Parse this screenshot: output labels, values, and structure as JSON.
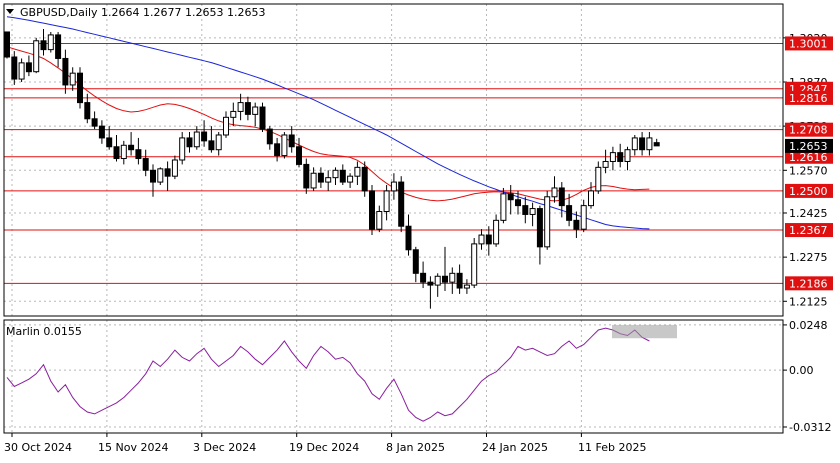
{
  "header": {
    "symbol": "GBPUSD,Daily",
    "ohlc": "1.2664 1.2677 1.2653 1.2653"
  },
  "indicator": {
    "label": "Marlin 0.0155"
  },
  "chart_data": [
    {
      "type": "candlestick",
      "title": "GBPUSD,Daily",
      "ylim": [
        1.2075,
        1.3135
      ],
      "y_ticks": [
        "1.3020",
        "1.2870",
        "1.2720",
        "1.2570",
        "1.2425",
        "1.2275",
        "1.2125"
      ],
      "x_ticks": [
        "30 Oct 2024",
        "15 Nov 2024",
        "3 Dec 2024",
        "19 Dec 2024",
        "8 Jan 2025",
        "24 Jan 2025",
        "11 Feb 2025"
      ],
      "current_price": "1.2653",
      "levels": [
        {
          "value": 1.3001,
          "label": "1.3001"
        },
        {
          "value": 1.2847,
          "label": "1.2847"
        },
        {
          "value": 1.2816,
          "label": "1.2816"
        },
        {
          "value": 1.2708,
          "label": "1.2708"
        },
        {
          "value": 1.2616,
          "label": "1.2616"
        },
        {
          "value": 1.25,
          "label": "1.2500"
        },
        {
          "value": 1.2367,
          "label": "1.2367"
        },
        {
          "value": 1.2186,
          "label": "1.2186"
        }
      ],
      "candles": [
        [
          1.304,
          1.304,
          1.295,
          1.2955
        ],
        [
          1.2955,
          1.2975,
          1.286,
          1.288
        ],
        [
          1.288,
          1.295,
          1.287,
          1.2935
        ],
        [
          1.2935,
          1.296,
          1.289,
          1.2905
        ],
        [
          1.2905,
          1.302,
          1.29,
          1.301
        ],
        [
          1.301,
          1.305,
          1.296,
          1.298
        ],
        [
          1.298,
          1.304,
          1.297,
          1.303
        ],
        [
          1.303,
          1.304,
          1.292,
          1.295
        ],
        [
          1.295,
          1.298,
          1.283,
          1.286
        ],
        [
          1.286,
          1.292,
          1.284,
          1.29
        ],
        [
          1.29,
          1.292,
          1.278,
          1.28
        ],
        [
          1.28,
          1.283,
          1.273,
          1.2745
        ],
        [
          1.2745,
          1.277,
          1.271,
          1.272
        ],
        [
          1.272,
          1.274,
          1.266,
          1.268
        ],
        [
          1.268,
          1.272,
          1.264,
          1.265
        ],
        [
          1.265,
          1.269,
          1.26,
          1.261
        ],
        [
          1.261,
          1.267,
          1.259,
          1.2655
        ],
        [
          1.2655,
          1.27,
          1.262,
          1.264
        ],
        [
          1.264,
          1.268,
          1.259,
          1.261
        ],
        [
          1.261,
          1.264,
          1.255,
          1.257
        ],
        [
          1.257,
          1.259,
          1.248,
          1.253
        ],
        [
          1.253,
          1.258,
          1.252,
          1.2575
        ],
        [
          1.2575,
          1.26,
          1.25,
          1.255
        ],
        [
          1.255,
          1.262,
          1.254,
          1.2605
        ],
        [
          1.2605,
          1.27,
          1.259,
          1.268
        ],
        [
          1.268,
          1.27,
          1.263,
          1.265
        ],
        [
          1.265,
          1.272,
          1.264,
          1.27
        ],
        [
          1.27,
          1.274,
          1.265,
          1.267
        ],
        [
          1.267,
          1.272,
          1.263,
          1.264
        ],
        [
          1.264,
          1.27,
          1.262,
          1.269
        ],
        [
          1.269,
          1.277,
          1.268,
          1.275
        ],
        [
          1.275,
          1.28,
          1.272,
          1.277
        ],
        [
          1.277,
          1.283,
          1.274,
          1.28
        ],
        [
          1.28,
          1.282,
          1.274,
          1.276
        ],
        [
          1.276,
          1.28,
          1.272,
          1.2785
        ],
        [
          1.2785,
          1.28,
          1.27,
          1.271
        ],
        [
          1.271,
          1.272,
          1.264,
          1.266
        ],
        [
          1.266,
          1.268,
          1.26,
          1.262
        ],
        [
          1.262,
          1.27,
          1.261,
          1.269
        ],
        [
          1.269,
          1.272,
          1.263,
          1.265
        ],
        [
          1.265,
          1.268,
          1.258,
          1.259
        ],
        [
          1.259,
          1.261,
          1.249,
          1.251
        ],
        [
          1.251,
          1.258,
          1.25,
          1.256
        ],
        [
          1.256,
          1.258,
          1.251,
          1.253
        ],
        [
          1.253,
          1.257,
          1.25,
          1.2545
        ],
        [
          1.2545,
          1.258,
          1.252,
          1.257
        ],
        [
          1.257,
          1.259,
          1.252,
          1.253
        ],
        [
          1.253,
          1.256,
          1.251,
          1.255
        ],
        [
          1.255,
          1.26,
          1.252,
          1.258
        ],
        [
          1.258,
          1.26,
          1.248,
          1.25
        ],
        [
          1.25,
          1.252,
          1.235,
          1.237
        ],
        [
          1.237,
          1.245,
          1.236,
          1.243
        ],
        [
          1.243,
          1.252,
          1.24,
          1.25
        ],
        [
          1.25,
          1.256,
          1.247,
          1.253
        ],
        [
          1.253,
          1.255,
          1.236,
          1.238
        ],
        [
          1.238,
          1.242,
          1.228,
          1.23
        ],
        [
          1.23,
          1.231,
          1.219,
          1.222
        ],
        [
          1.222,
          1.226,
          1.217,
          1.219
        ],
        [
          1.219,
          1.221,
          1.21,
          1.218
        ],
        [
          1.218,
          1.222,
          1.214,
          1.221
        ],
        [
          1.221,
          1.231,
          1.216,
          1.219
        ],
        [
          1.219,
          1.224,
          1.215,
          1.222
        ],
        [
          1.222,
          1.225,
          1.215,
          1.217
        ],
        [
          1.217,
          1.22,
          1.215,
          1.218
        ],
        [
          1.218,
          1.234,
          1.217,
          1.232
        ],
        [
          1.232,
          1.237,
          1.23,
          1.235
        ],
        [
          1.235,
          1.238,
          1.228,
          1.232
        ],
        [
          1.232,
          1.242,
          1.231,
          1.24
        ],
        [
          1.24,
          1.251,
          1.239,
          1.249
        ],
        [
          1.249,
          1.252,
          1.242,
          1.247
        ],
        [
          1.247,
          1.25,
          1.242,
          1.245
        ],
        [
          1.245,
          1.248,
          1.239,
          1.242
        ],
        [
          1.242,
          1.246,
          1.238,
          1.244
        ],
        [
          1.244,
          1.245,
          1.225,
          1.231
        ],
        [
          1.231,
          1.25,
          1.23,
          1.248
        ],
        [
          1.248,
          1.255,
          1.246,
          1.251
        ],
        [
          1.251,
          1.253,
          1.241,
          1.245
        ],
        [
          1.245,
          1.249,
          1.238,
          1.24
        ],
        [
          1.24,
          1.243,
          1.234,
          1.237
        ],
        [
          1.237,
          1.247,
          1.236,
          1.245
        ],
        [
          1.245,
          1.253,
          1.244,
          1.25
        ],
        [
          1.25,
          1.26,
          1.249,
          1.258
        ],
        [
          1.258,
          1.264,
          1.256,
          1.26
        ],
        [
          1.26,
          1.265,
          1.257,
          1.263
        ],
        [
          1.263,
          1.266,
          1.258,
          1.26
        ],
        [
          1.26,
          1.265,
          1.257,
          1.264
        ],
        [
          1.264,
          1.269,
          1.262,
          1.268
        ],
        [
          1.268,
          1.27,
          1.262,
          1.264
        ],
        [
          1.264,
          1.27,
          1.262,
          1.268
        ],
        [
          1.2664,
          1.2677,
          1.2653,
          1.2653
        ]
      ],
      "series": [
        {
          "name": "",
          "color": "#e01010",
          "values": [
            1.299,
            1.2982,
            1.2975,
            1.2968,
            1.296,
            1.295,
            1.2935,
            1.2918,
            1.29,
            1.288,
            1.286,
            1.284,
            1.2822,
            1.2806,
            1.2792,
            1.278,
            1.2772,
            1.2768,
            1.277,
            1.2776,
            1.2784,
            1.2792,
            1.2796,
            1.2794,
            1.2788,
            1.278,
            1.277,
            1.276,
            1.2748,
            1.2738,
            1.273,
            1.2725,
            1.2722,
            1.272,
            1.2716,
            1.271,
            1.2702,
            1.2692,
            1.268,
            1.2668,
            1.2656,
            1.2644,
            1.2634,
            1.2626,
            1.2622,
            1.262,
            1.2618,
            1.2614,
            1.2604,
            1.2588,
            1.2566,
            1.2544,
            1.2526,
            1.251,
            1.2496,
            1.2486,
            1.2478,
            1.2472,
            1.2468,
            1.2466,
            1.2468,
            1.2472,
            1.2478,
            1.2484,
            1.249,
            1.2494,
            1.2496,
            1.2497,
            1.2496,
            1.2494,
            1.249,
            1.2484,
            1.2478,
            1.2472,
            1.2468,
            1.2466,
            1.2468,
            1.2476,
            1.2488,
            1.2502,
            1.2512,
            1.2517,
            1.2518,
            1.2515,
            1.251,
            1.2506,
            1.2504,
            1.2505,
            1.2506
          ]
        },
        {
          "name": "",
          "color": "#1a24d8",
          "values": [
            1.3092,
            1.3088,
            1.3084,
            1.308,
            1.3075,
            1.307,
            1.3065,
            1.306,
            1.3055,
            1.305,
            1.3044,
            1.3038,
            1.3032,
            1.3026,
            1.302,
            1.3014,
            1.3008,
            1.3002,
            1.2996,
            1.299,
            1.2984,
            1.2978,
            1.2972,
            1.2966,
            1.296,
            1.2954,
            1.2948,
            1.2942,
            1.2936,
            1.2928,
            1.292,
            1.2912,
            1.2904,
            1.2896,
            1.2888,
            1.288,
            1.287,
            1.286,
            1.285,
            1.284,
            1.283,
            1.282,
            1.281,
            1.2798,
            1.2786,
            1.2774,
            1.2762,
            1.275,
            1.2738,
            1.2726,
            1.2714,
            1.2702,
            1.269,
            1.2676,
            1.2662,
            1.2648,
            1.2634,
            1.262,
            1.2606,
            1.2592,
            1.258,
            1.2568,
            1.2556,
            1.2545,
            1.2534,
            1.2524,
            1.2514,
            1.2505,
            1.2496,
            1.2488,
            1.248,
            1.2472,
            1.2465,
            1.2457,
            1.245,
            1.2442,
            1.2434,
            1.2426,
            1.2418,
            1.241,
            1.2402,
            1.2394,
            1.2386,
            1.2381,
            1.2378,
            1.2376,
            1.2374,
            1.2372,
            1.2371
          ]
        }
      ]
    },
    {
      "type": "line",
      "title": "Marlin 0.0155",
      "ylim": [
        -0.0345,
        0.0275
      ],
      "y_ticks": [
        "0.0248",
        "0.00",
        "-0.0312"
      ],
      "series": [
        {
          "name": "Marlin",
          "color": "#8a1f9e",
          "values": [
            -0.004,
            -0.009,
            -0.007,
            -0.005,
            -0.002,
            0.003,
            -0.006,
            -0.012,
            -0.008,
            -0.015,
            -0.02,
            -0.023,
            -0.024,
            -0.022,
            -0.02,
            -0.018,
            -0.015,
            -0.011,
            -0.007,
            -0.002,
            0.005,
            0.002,
            0.006,
            0.011,
            0.007,
            0.005,
            0.009,
            0.012,
            0.006,
            0.002,
            0.005,
            0.008,
            0.013,
            0.01,
            0.006,
            0.003,
            0.007,
            0.011,
            0.016,
            0.01,
            0.005,
            0.001,
            0.008,
            0.013,
            0.01,
            0.006,
            0.007,
            0.004,
            -0.002,
            -0.006,
            -0.013,
            -0.016,
            -0.01,
            -0.005,
            -0.013,
            -0.022,
            -0.026,
            -0.028,
            -0.026,
            -0.023,
            -0.025,
            -0.024,
            -0.02,
            -0.016,
            -0.011,
            -0.006,
            -0.003,
            -0.001,
            0.003,
            0.007,
            0.013,
            0.011,
            0.012,
            0.01,
            0.008,
            0.009,
            0.013,
            0.016,
            0.012,
            0.014,
            0.018,
            0.022,
            0.023,
            0.022,
            0.02,
            0.019,
            0.022,
            0.018,
            0.016
          ]
        }
      ]
    }
  ],
  "x_axis": {
    "labels": [
      "30 Oct 2024",
      "15 Nov 2024",
      "3 Dec 2024",
      "19 Dec 2024",
      "8 Jan 2025",
      "24 Jan 2025",
      "11 Feb 2025"
    ]
  },
  "colors": {
    "up_candle": "#ffffff",
    "down_candle": "#000000",
    "level_line": "#e01010",
    "level_label_bg": "#e01010",
    "price_label_bg": "#000000",
    "grid": "#b8b8b8"
  }
}
